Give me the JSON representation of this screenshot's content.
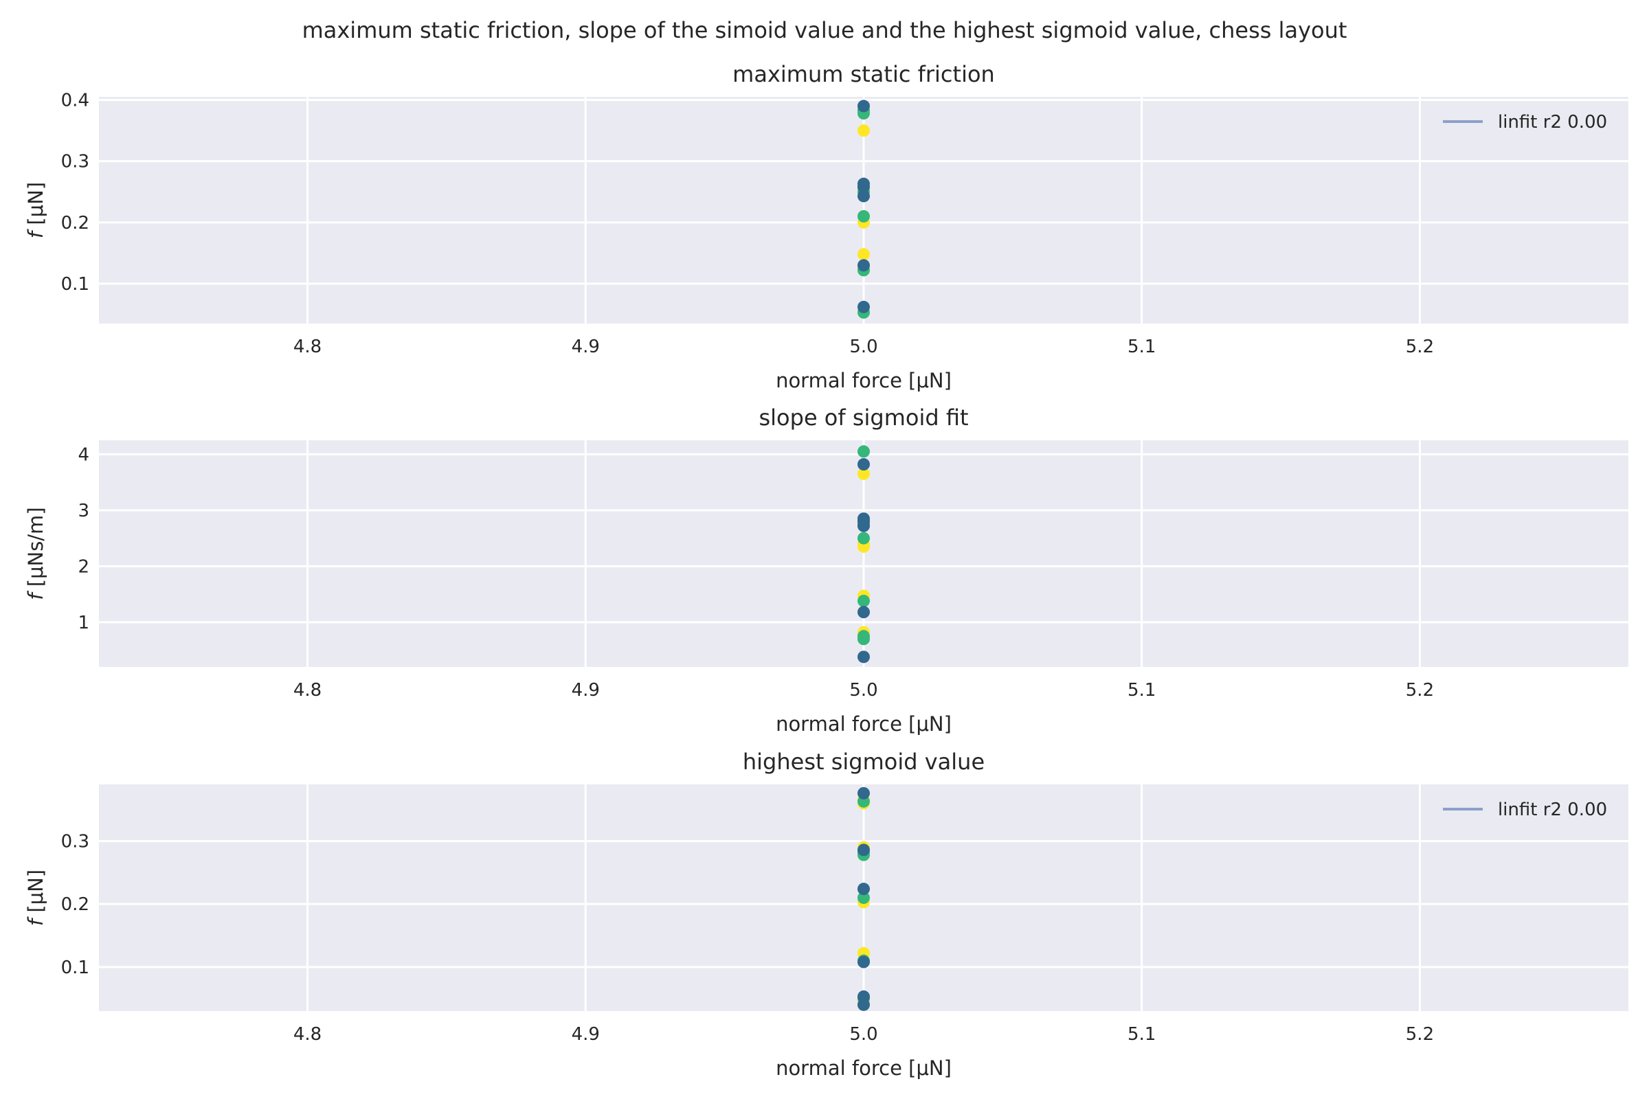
{
  "suptitle": "maximum static friction, slope of the simoid value and the highest sigmoid value, chess layout",
  "colors": {
    "background": "#ffffff",
    "axes_face": "#eaeaf2",
    "grid": "#ffffff",
    "text": "#262626",
    "linfit": "#8da0cb",
    "yellow": "#fde725",
    "green": "#35b779",
    "blue": "#31688e"
  },
  "chart_data": [
    {
      "type": "scatter",
      "title": "maximum static friction",
      "xlabel": "normal force [μN]",
      "ylabel_var": "f",
      "ylabel_unit": " [μN]",
      "xlim": [
        4.725,
        5.275
      ],
      "ylim": [
        0.035,
        0.405
      ],
      "xticks": [
        4.8,
        4.9,
        5.0,
        5.1,
        5.2
      ],
      "xtick_labels": [
        "4.8",
        "4.9",
        "5.0",
        "5.1",
        "5.2"
      ],
      "yticks": [
        0.1,
        0.2,
        0.3,
        0.4
      ],
      "ytick_labels": [
        "0.1",
        "0.2",
        "0.3",
        "0.4"
      ],
      "grid": true,
      "legend": {
        "label": "linfit r2 0.00",
        "placement": "upper right"
      },
      "series": [
        {
          "color": "yellow",
          "x": [
            5.0,
            5.0,
            5.0,
            5.0,
            5.0,
            5.0
          ],
          "y": [
            0.055,
            0.125,
            0.148,
            0.2,
            0.255,
            0.35
          ]
        },
        {
          "color": "green",
          "x": [
            5.0,
            5.0,
            5.0,
            5.0,
            5.0,
            5.0
          ],
          "y": [
            0.053,
            0.122,
            0.21,
            0.25,
            0.378,
            0.383
          ]
        },
        {
          "color": "blue",
          "x": [
            5.0,
            5.0,
            5.0,
            5.0,
            5.0,
            5.0
          ],
          "y": [
            0.062,
            0.13,
            0.243,
            0.258,
            0.263,
            0.39
          ]
        }
      ]
    },
    {
      "type": "scatter",
      "title": "slope of sigmoid fit",
      "xlabel": "normal force [μN]",
      "ylabel_var": "f",
      "ylabel_unit": " [μNs/m]",
      "xlim": [
        4.725,
        5.275
      ],
      "ylim": [
        0.2,
        4.25
      ],
      "xticks": [
        4.8,
        4.9,
        5.0,
        5.1,
        5.2
      ],
      "xtick_labels": [
        "4.8",
        "4.9",
        "5.0",
        "5.1",
        "5.2"
      ],
      "yticks": [
        1,
        2,
        3,
        4
      ],
      "ytick_labels": [
        "1",
        "2",
        "3",
        "4"
      ],
      "grid": true,
      "legend": null,
      "series": [
        {
          "color": "yellow",
          "x": [
            5.0,
            5.0,
            5.0,
            5.0,
            5.0,
            5.0
          ],
          "y": [
            0.82,
            1.47,
            2.35,
            2.4,
            2.8,
            3.65
          ]
        },
        {
          "color": "green",
          "x": [
            5.0,
            5.0,
            5.0,
            5.0,
            5.0,
            5.0
          ],
          "y": [
            0.7,
            0.75,
            1.38,
            2.5,
            2.75,
            4.05
          ]
        },
        {
          "color": "blue",
          "x": [
            5.0,
            5.0,
            5.0,
            5.0,
            5.0,
            5.0
          ],
          "y": [
            0.38,
            1.18,
            2.72,
            2.8,
            2.85,
            3.82
          ]
        }
      ]
    },
    {
      "type": "scatter",
      "title": "highest sigmoid value",
      "xlabel": "normal force [μN]",
      "ylabel_var": "f",
      "ylabel_unit": " [μN]",
      "xlim": [
        4.725,
        5.275
      ],
      "ylim": [
        0.03,
        0.39
      ],
      "xticks": [
        4.8,
        4.9,
        5.0,
        5.1,
        5.2
      ],
      "xtick_labels": [
        "4.8",
        "4.9",
        "5.0",
        "5.1",
        "5.2"
      ],
      "yticks": [
        0.1,
        0.2,
        0.3
      ],
      "ytick_labels": [
        "0.1",
        "0.2",
        "0.3"
      ],
      "grid": true,
      "legend": {
        "label": "linfit r2 0.00",
        "placement": "upper right"
      },
      "series": [
        {
          "color": "yellow",
          "x": [
            5.0,
            5.0,
            5.0,
            5.0,
            5.0,
            5.0
          ],
          "y": [
            0.043,
            0.122,
            0.203,
            0.29,
            0.36,
            0.365
          ]
        },
        {
          "color": "green",
          "x": [
            5.0,
            5.0,
            5.0,
            5.0,
            5.0,
            5.0
          ],
          "y": [
            0.05,
            0.11,
            0.21,
            0.278,
            0.282,
            0.363
          ]
        },
        {
          "color": "blue",
          "x": [
            5.0,
            5.0,
            5.0,
            5.0,
            5.0,
            5.0
          ],
          "y": [
            0.04,
            0.053,
            0.108,
            0.224,
            0.286,
            0.376
          ]
        }
      ]
    }
  ]
}
